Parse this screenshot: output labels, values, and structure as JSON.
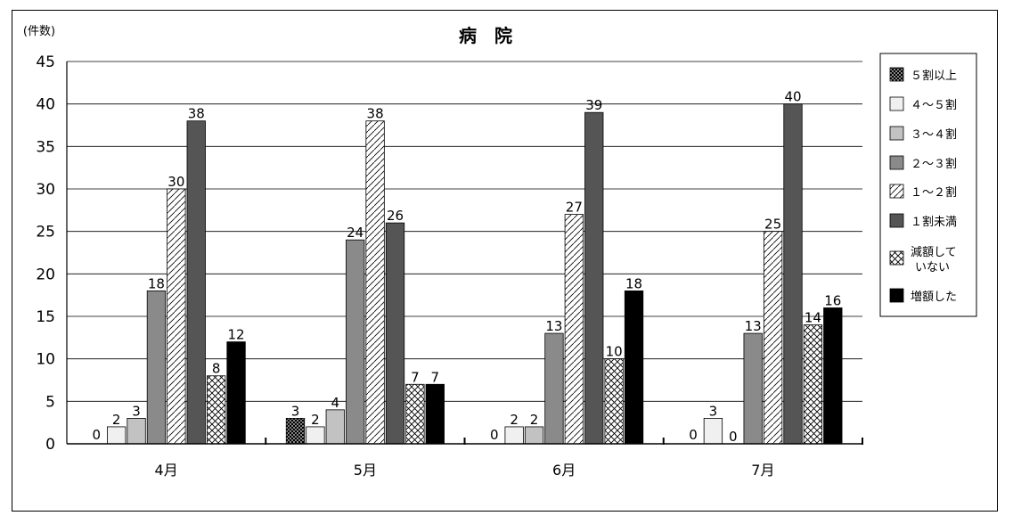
{
  "chart_data": {
    "type": "bar",
    "title": "病　院",
    "ylabel": "(件数)",
    "xlabel": "",
    "ylim": [
      0,
      45
    ],
    "yticks": [
      0,
      5,
      10,
      15,
      20,
      25,
      30,
      35,
      40,
      45
    ],
    "grid": true,
    "legend_position": "right",
    "categories": [
      "4月",
      "5月",
      "6月",
      "7月"
    ],
    "series": [
      {
        "name": "５割以上",
        "values": [
          0,
          3,
          0,
          0
        ],
        "pattern": "crosshatch-dense"
      },
      {
        "name": "４～５割",
        "values": [
          2,
          2,
          2,
          3
        ],
        "pattern": "light"
      },
      {
        "name": "３～４割",
        "values": [
          3,
          4,
          2,
          0
        ],
        "pattern": "light-gray"
      },
      {
        "name": "２～３割",
        "values": [
          18,
          24,
          13,
          13
        ],
        "pattern": "gray"
      },
      {
        "name": "１～２割",
        "values": [
          30,
          38,
          27,
          25
        ],
        "pattern": "diagonal"
      },
      {
        "name": "１割未満",
        "values": [
          38,
          26,
          39,
          40
        ],
        "pattern": "dark-gray"
      },
      {
        "name": "減額して\nいない",
        "values": [
          8,
          7,
          10,
          14
        ],
        "pattern": "crosshatch"
      },
      {
        "name": "増額した",
        "values": [
          12,
          7,
          18,
          16
        ],
        "pattern": "black"
      }
    ],
    "data_labels": [
      [
        null,
        3,
        null,
        null
      ],
      [
        2,
        2,
        2,
        3
      ],
      [
        3,
        4,
        2,
        0
      ],
      [
        18,
        24,
        13,
        13
      ],
      [
        30,
        38,
        27,
        25
      ],
      [
        38,
        26,
        39,
        40
      ],
      [
        8,
        7,
        10,
        14
      ],
      [
        12,
        7,
        18,
        16
      ]
    ],
    "zero_labels": [
      "0",
      "",
      "0",
      "0"
    ]
  }
}
